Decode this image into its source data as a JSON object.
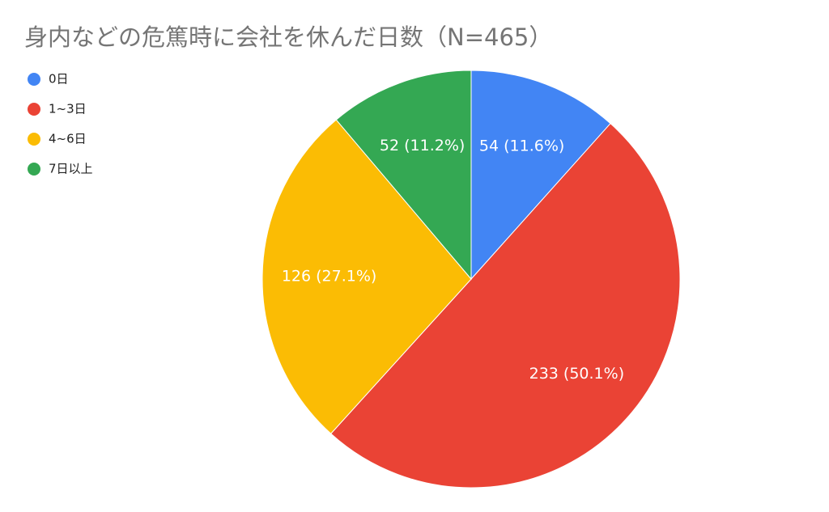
{
  "chart_data": {
    "type": "pie",
    "title": "身内などの危篤時に会社を休んだ日数（N=465）",
    "categories": [
      "0日",
      "1~3日",
      "4~6日",
      "7日以上"
    ],
    "values": [
      54,
      233,
      126,
      52
    ],
    "value_labels": [
      "54 (11.6%)",
      "233 (50.1%)",
      "126 (27.1%)",
      "52 (11.2%)"
    ],
    "colors": [
      "#4285f4",
      "#ea4335",
      "#fbbc04",
      "#34a853"
    ],
    "legend": "top-left"
  }
}
